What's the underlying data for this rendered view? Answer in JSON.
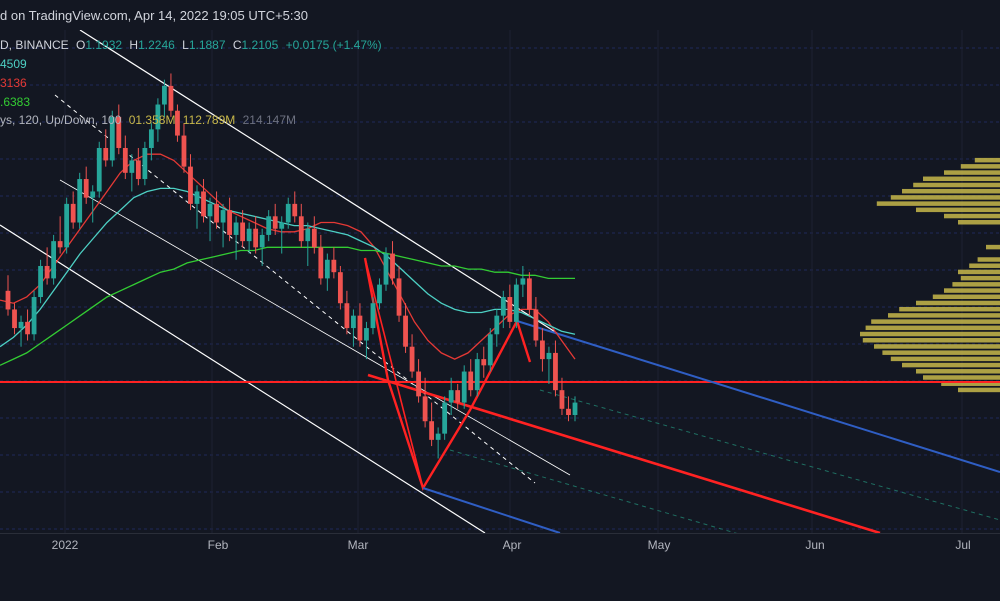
{
  "header": {
    "published": "d on TradingView.com, Apr 14, 2022 19:05 UTC+5:30"
  },
  "legend": {
    "symbol": "D, BINANCE",
    "o_label": "O",
    "o_value": "1.1932",
    "h_label": "H",
    "h_value": "1.2246",
    "l_label": "L",
    "l_value": "1.1887",
    "c_label": "C",
    "c_value": "1.2105",
    "change": "+0.0175 (+1.47%)",
    "ma1": "4509",
    "ma2": "3136",
    "ma3": ".6383",
    "vp_label": "ys, 120, Up/Down, 100",
    "vp_v1": "01.358M",
    "vp_v2": "112.789M",
    "vp_v3": "214.147M"
  },
  "colors": {
    "background": "#131722",
    "up": "#26a69a",
    "down": "#ef5350",
    "ma_fast": "#e53935",
    "ma_mid": "#4dd0c4",
    "ma_slow": "#33cc33",
    "trendline": "#ff2222",
    "channel": "#ffffff",
    "blue_line": "#2f5ec4",
    "volume_profile": "#c8b84a"
  },
  "chart_data": {
    "type": "candlestick",
    "x_ticks": [
      "2022",
      "Feb",
      "Mar",
      "Apr",
      "May",
      "Jun",
      "Jul"
    ],
    "x_range": [
      "2021-12-21",
      "2022-07-20"
    ],
    "candles_ohlc": [
      [
        1.58,
        1.63,
        1.5,
        1.52
      ],
      [
        1.52,
        1.54,
        1.44,
        1.46
      ],
      [
        1.46,
        1.5,
        1.4,
        1.48
      ],
      [
        1.48,
        1.52,
        1.42,
        1.44
      ],
      [
        1.44,
        1.58,
        1.42,
        1.56
      ],
      [
        1.56,
        1.68,
        1.54,
        1.66
      ],
      [
        1.66,
        1.72,
        1.6,
        1.62
      ],
      [
        1.62,
        1.76,
        1.6,
        1.74
      ],
      [
        1.74,
        1.82,
        1.7,
        1.72
      ],
      [
        1.72,
        1.88,
        1.7,
        1.86
      ],
      [
        1.86,
        1.9,
        1.78,
        1.8
      ],
      [
        1.8,
        1.96,
        1.78,
        1.94
      ],
      [
        1.94,
        1.98,
        1.86,
        1.88
      ],
      [
        1.88,
        1.92,
        1.8,
        1.9
      ],
      [
        1.9,
        2.06,
        1.88,
        2.04
      ],
      [
        2.04,
        2.1,
        1.98,
        2.0
      ],
      [
        2.0,
        2.16,
        1.98,
        2.14
      ],
      [
        2.14,
        2.18,
        2.02,
        2.04
      ],
      [
        2.04,
        2.08,
        1.94,
        1.96
      ],
      [
        1.96,
        2.02,
        1.9,
        2.0
      ],
      [
        2.0,
        2.04,
        1.92,
        1.94
      ],
      [
        1.94,
        2.06,
        1.92,
        2.04
      ],
      [
        2.04,
        2.12,
        2.0,
        2.1
      ],
      [
        2.1,
        2.2,
        2.06,
        2.18
      ],
      [
        2.18,
        2.26,
        2.14,
        2.24
      ],
      [
        2.24,
        2.28,
        2.14,
        2.16
      ],
      [
        2.16,
        2.18,
        2.06,
        2.08
      ],
      [
        2.08,
        2.12,
        1.96,
        1.98
      ],
      [
        1.98,
        2.02,
        1.84,
        1.86
      ],
      [
        1.86,
        1.92,
        1.78,
        1.9
      ],
      [
        1.9,
        1.94,
        1.8,
        1.82
      ],
      [
        1.82,
        1.88,
        1.74,
        1.86
      ],
      [
        1.86,
        1.9,
        1.78,
        1.8
      ],
      [
        1.8,
        1.86,
        1.72,
        1.84
      ],
      [
        1.84,
        1.88,
        1.74,
        1.76
      ],
      [
        1.76,
        1.82,
        1.68,
        1.8
      ],
      [
        1.8,
        1.84,
        1.72,
        1.74
      ],
      [
        1.74,
        1.8,
        1.7,
        1.78
      ],
      [
        1.78,
        1.82,
        1.7,
        1.72
      ],
      [
        1.72,
        1.78,
        1.66,
        1.76
      ],
      [
        1.76,
        1.84,
        1.74,
        1.82
      ],
      [
        1.82,
        1.86,
        1.76,
        1.78
      ],
      [
        1.78,
        1.82,
        1.7,
        1.8
      ],
      [
        1.8,
        1.88,
        1.78,
        1.86
      ],
      [
        1.86,
        1.9,
        1.8,
        1.82
      ],
      [
        1.82,
        1.86,
        1.72,
        1.74
      ],
      [
        1.74,
        1.8,
        1.66,
        1.78
      ],
      [
        1.78,
        1.82,
        1.7,
        1.72
      ],
      [
        1.72,
        1.76,
        1.6,
        1.62
      ],
      [
        1.62,
        1.7,
        1.58,
        1.68
      ],
      [
        1.68,
        1.72,
        1.62,
        1.64
      ],
      [
        1.64,
        1.66,
        1.52,
        1.54
      ],
      [
        1.54,
        1.58,
        1.44,
        1.46
      ],
      [
        1.46,
        1.52,
        1.4,
        1.5
      ],
      [
        1.5,
        1.54,
        1.4,
        1.42
      ],
      [
        1.42,
        1.48,
        1.36,
        1.46
      ],
      [
        1.46,
        1.56,
        1.44,
        1.54
      ],
      [
        1.54,
        1.62,
        1.52,
        1.6
      ],
      [
        1.6,
        1.72,
        1.58,
        1.7
      ],
      [
        1.7,
        1.74,
        1.6,
        1.62
      ],
      [
        1.62,
        1.66,
        1.48,
        1.5
      ],
      [
        1.5,
        1.54,
        1.38,
        1.4
      ],
      [
        1.4,
        1.44,
        1.3,
        1.32
      ],
      [
        1.32,
        1.36,
        1.22,
        1.24
      ],
      [
        1.24,
        1.3,
        1.14,
        1.16
      ],
      [
        1.16,
        1.22,
        1.08,
        1.1
      ],
      [
        1.1,
        1.14,
        1.04,
        1.12
      ],
      [
        1.12,
        1.24,
        1.1,
        1.22
      ],
      [
        1.22,
        1.3,
        1.18,
        1.26
      ],
      [
        1.26,
        1.28,
        1.2,
        1.22
      ],
      [
        1.22,
        1.34,
        1.2,
        1.32
      ],
      [
        1.32,
        1.36,
        1.24,
        1.26
      ],
      [
        1.26,
        1.38,
        1.24,
        1.36
      ],
      [
        1.36,
        1.4,
        1.3,
        1.34
      ],
      [
        1.34,
        1.46,
        1.32,
        1.44
      ],
      [
        1.44,
        1.52,
        1.4,
        1.5
      ],
      [
        1.5,
        1.58,
        1.46,
        1.56
      ],
      [
        1.56,
        1.6,
        1.46,
        1.48
      ],
      [
        1.48,
        1.62,
        1.46,
        1.6
      ],
      [
        1.6,
        1.66,
        1.56,
        1.62
      ],
      [
        1.62,
        1.64,
        1.5,
        1.52
      ],
      [
        1.52,
        1.56,
        1.4,
        1.42
      ],
      [
        1.42,
        1.46,
        1.32,
        1.36
      ],
      [
        1.36,
        1.4,
        1.28,
        1.38
      ],
      [
        1.38,
        1.42,
        1.24,
        1.26
      ],
      [
        1.26,
        1.3,
        1.18,
        1.2
      ],
      [
        1.2,
        1.24,
        1.16,
        1.18
      ],
      [
        1.18,
        1.24,
        1.16,
        1.22
      ]
    ],
    "moving_averages": [
      {
        "label": "4509",
        "values": [
          1.55,
          1.54,
          1.56,
          1.6,
          1.66,
          1.72,
          1.78,
          1.84,
          1.9,
          1.96,
          2.0,
          2.02,
          2.02,
          2.0,
          1.96,
          1.92,
          1.88,
          1.84,
          1.82,
          1.8,
          1.78,
          1.77,
          1.77,
          1.78,
          1.8,
          1.8,
          1.79,
          1.77,
          1.72,
          1.64,
          1.56,
          1.48,
          1.42,
          1.38,
          1.36,
          1.38,
          1.42,
          1.46,
          1.5,
          1.52,
          1.52,
          1.48,
          1.42,
          1.36
        ]
      },
      {
        "label": "3136",
        "values": [
          1.4,
          1.43,
          1.47,
          1.52,
          1.58,
          1.64,
          1.7,
          1.75,
          1.8,
          1.84,
          1.88,
          1.9,
          1.91,
          1.91,
          1.9,
          1.88,
          1.86,
          1.84,
          1.83,
          1.82,
          1.81,
          1.8,
          1.79,
          1.79,
          1.78,
          1.77,
          1.76,
          1.74,
          1.72,
          1.69,
          1.65,
          1.61,
          1.57,
          1.54,
          1.52,
          1.51,
          1.51,
          1.52,
          1.52,
          1.51,
          1.49,
          1.47,
          1.45,
          1.44
        ]
      },
      {
        "label": ".6383",
        "values": [
          1.34,
          1.36,
          1.38,
          1.41,
          1.44,
          1.47,
          1.5,
          1.53,
          1.56,
          1.58,
          1.6,
          1.62,
          1.64,
          1.65,
          1.67,
          1.68,
          1.69,
          1.7,
          1.71,
          1.71,
          1.72,
          1.72,
          1.72,
          1.72,
          1.72,
          1.72,
          1.72,
          1.71,
          1.71,
          1.7,
          1.69,
          1.68,
          1.67,
          1.66,
          1.66,
          1.65,
          1.65,
          1.64,
          1.64,
          1.63,
          1.63,
          1.62,
          1.62,
          1.62
        ]
      }
    ],
    "horizontal_levels": [
      1.36
    ],
    "volume_profile_bars": [
      [
        2.0,
        0.18
      ],
      [
        1.98,
        0.28
      ],
      [
        1.96,
        0.4
      ],
      [
        1.94,
        0.55
      ],
      [
        1.92,
        0.62
      ],
      [
        1.9,
        0.7
      ],
      [
        1.88,
        0.78
      ],
      [
        1.86,
        0.88
      ],
      [
        1.84,
        0.6
      ],
      [
        1.82,
        0.4
      ],
      [
        1.8,
        0.3
      ],
      [
        1.72,
        0.1
      ],
      [
        1.68,
        0.16
      ],
      [
        1.66,
        0.22
      ],
      [
        1.64,
        0.3
      ],
      [
        1.62,
        0.28
      ],
      [
        1.6,
        0.34
      ],
      [
        1.58,
        0.4
      ],
      [
        1.56,
        0.48
      ],
      [
        1.54,
        0.6
      ],
      [
        1.52,
        0.72
      ],
      [
        1.5,
        0.8
      ],
      [
        1.48,
        0.92
      ],
      [
        1.46,
        0.96
      ],
      [
        1.44,
        1.0
      ],
      [
        1.42,
        0.98
      ],
      [
        1.4,
        0.9
      ],
      [
        1.38,
        0.84
      ],
      [
        1.36,
        0.78
      ],
      [
        1.34,
        0.7
      ],
      [
        1.32,
        0.6
      ],
      [
        1.3,
        0.55
      ],
      [
        1.28,
        0.42
      ],
      [
        1.26,
        0.3
      ]
    ],
    "y_range": [
      0.8,
      2.42
    ],
    "grid": true
  }
}
